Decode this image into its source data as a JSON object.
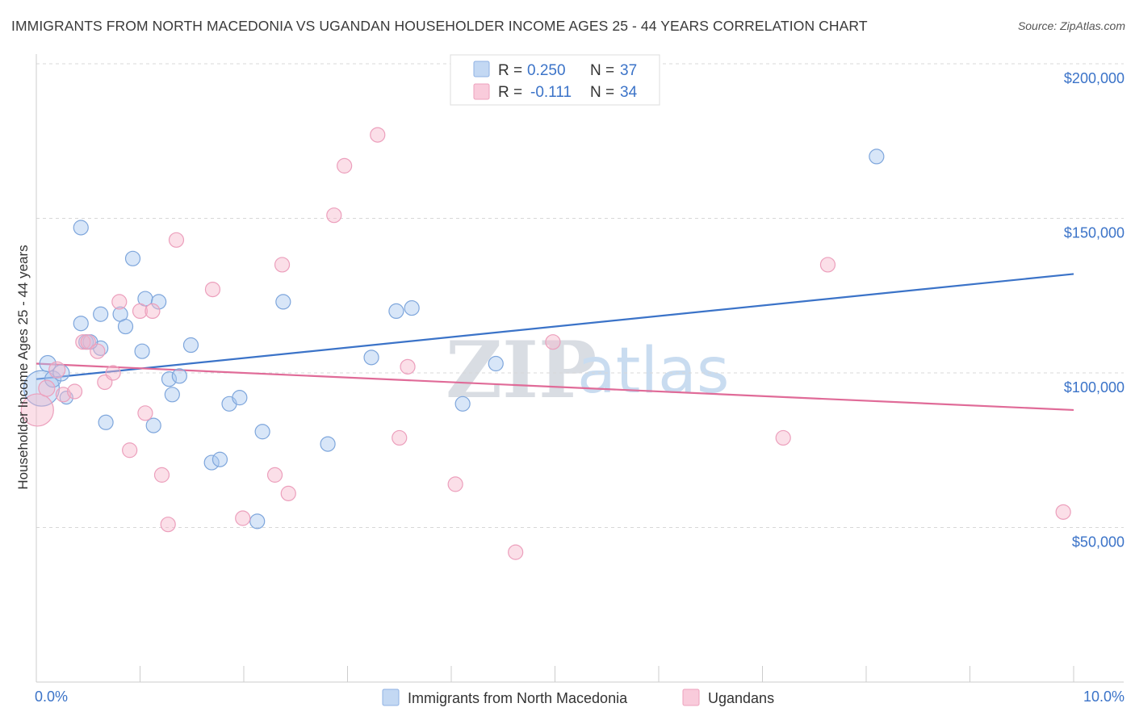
{
  "title": "IMMIGRANTS FROM NORTH MACEDONIA VS UGANDAN HOUSEHOLDER INCOME AGES 25 - 44 YEARS CORRELATION CHART",
  "source": "Source: ZipAtlas.com",
  "watermark": {
    "zip": "ZIP",
    "atlas": "atlas"
  },
  "colors": {
    "blue": "#3b73c8",
    "blue_fill": "#a9c8ef",
    "pink": "#e06b98",
    "pink_fill": "#f6b8cc",
    "grid": "#d8d8d8"
  },
  "legend": {
    "r_label": "R =",
    "n_label": "N =",
    "rows": [
      {
        "r": "0.250",
        "n": "37"
      },
      {
        "r": "-0.111",
        "n": "34"
      }
    ]
  },
  "chart_data": {
    "type": "scatter",
    "title": "IMMIGRANTS FROM NORTH MACEDONIA VS UGANDAN HOUSEHOLDER INCOME AGES 25 - 44 YEARS CORRELATION CHART",
    "xlabel": "",
    "ylabel": "Householder Income Ages 25 - 44 years",
    "xlim": [
      0,
      10
    ],
    "ylim": [
      0,
      210000
    ],
    "x_tick_labels": [
      "0.0%",
      "10.0%"
    ],
    "y_ticks": [
      50000,
      100000,
      150000,
      200000
    ],
    "y_tick_labels": [
      "$50,000",
      "$100,000",
      "$150,000",
      "$200,000"
    ],
    "grid": true,
    "legend_position": "top-center",
    "series": [
      {
        "name": "Immigrants from North Macedonia",
        "color": "blue",
        "r": 0.25,
        "n": 37,
        "trend": [
          [
            0,
            98000
          ],
          [
            10,
            132000
          ]
        ],
        "points": [
          [
            0.05,
            95000,
            22
          ],
          [
            0.11,
            103000,
            10
          ],
          [
            0.16,
            98000,
            10
          ],
          [
            0.24,
            100000,
            10
          ],
          [
            0.29,
            92000,
            8
          ],
          [
            0.43,
            147000,
            9
          ],
          [
            0.43,
            116000,
            9
          ],
          [
            0.48,
            110000,
            9
          ],
          [
            0.62,
            108000,
            9
          ],
          [
            0.62,
            119000,
            9
          ],
          [
            0.67,
            84000,
            9
          ],
          [
            0.81,
            119000,
            9
          ],
          [
            0.86,
            115000,
            9
          ],
          [
            0.93,
            137000,
            9
          ],
          [
            1.02,
            107000,
            9
          ],
          [
            1.05,
            124000,
            9
          ],
          [
            1.13,
            83000,
            9
          ],
          [
            1.18,
            123000,
            9
          ],
          [
            1.28,
            98000,
            9
          ],
          [
            1.31,
            93000,
            9
          ],
          [
            1.38,
            99000,
            9
          ],
          [
            1.49,
            109000,
            9
          ],
          [
            1.69,
            71000,
            9
          ],
          [
            1.77,
            72000,
            9
          ],
          [
            1.86,
            90000,
            9
          ],
          [
            1.96,
            92000,
            9
          ],
          [
            2.13,
            52000,
            9
          ],
          [
            2.18,
            81000,
            9
          ],
          [
            2.38,
            123000,
            9
          ],
          [
            2.81,
            77000,
            9
          ],
          [
            3.23,
            105000,
            9
          ],
          [
            3.47,
            120000,
            9
          ],
          [
            3.62,
            121000,
            9
          ],
          [
            4.11,
            90000,
            9
          ],
          [
            4.43,
            103000,
            9
          ],
          [
            8.1,
            170000,
            9
          ],
          [
            0.52,
            110000,
            9
          ]
        ]
      },
      {
        "name": "Ugandans",
        "color": "pink",
        "r": -0.111,
        "n": 34,
        "trend": [
          [
            0,
            103000
          ],
          [
            10,
            88000
          ]
        ],
        "points": [
          [
            0.01,
            88000,
            20
          ],
          [
            0.1,
            95000,
            10
          ],
          [
            0.2,
            101000,
            10
          ],
          [
            0.26,
            93000,
            9
          ],
          [
            0.37,
            94000,
            9
          ],
          [
            0.45,
            110000,
            9
          ],
          [
            0.5,
            110000,
            9
          ],
          [
            0.59,
            107000,
            9
          ],
          [
            0.66,
            97000,
            9
          ],
          [
            0.74,
            100000,
            9
          ],
          [
            0.8,
            123000,
            9
          ],
          [
            0.9,
            75000,
            9
          ],
          [
            1.0,
            120000,
            9
          ],
          [
            1.05,
            87000,
            9
          ],
          [
            1.12,
            120000,
            9
          ],
          [
            1.21,
            67000,
            9
          ],
          [
            1.27,
            51000,
            9
          ],
          [
            1.35,
            143000,
            9
          ],
          [
            1.7,
            127000,
            9
          ],
          [
            1.99,
            53000,
            9
          ],
          [
            2.3,
            67000,
            9
          ],
          [
            2.37,
            135000,
            9
          ],
          [
            2.43,
            61000,
            9
          ],
          [
            2.87,
            151000,
            9
          ],
          [
            2.97,
            167000,
            9
          ],
          [
            3.29,
            177000,
            9
          ],
          [
            3.5,
            79000,
            9
          ],
          [
            3.58,
            102000,
            9
          ],
          [
            4.04,
            64000,
            9
          ],
          [
            4.62,
            42000,
            9
          ],
          [
            4.98,
            110000,
            9
          ],
          [
            7.2,
            79000,
            9
          ],
          [
            7.63,
            135000,
            9
          ],
          [
            9.9,
            55000,
            9
          ]
        ]
      }
    ]
  }
}
